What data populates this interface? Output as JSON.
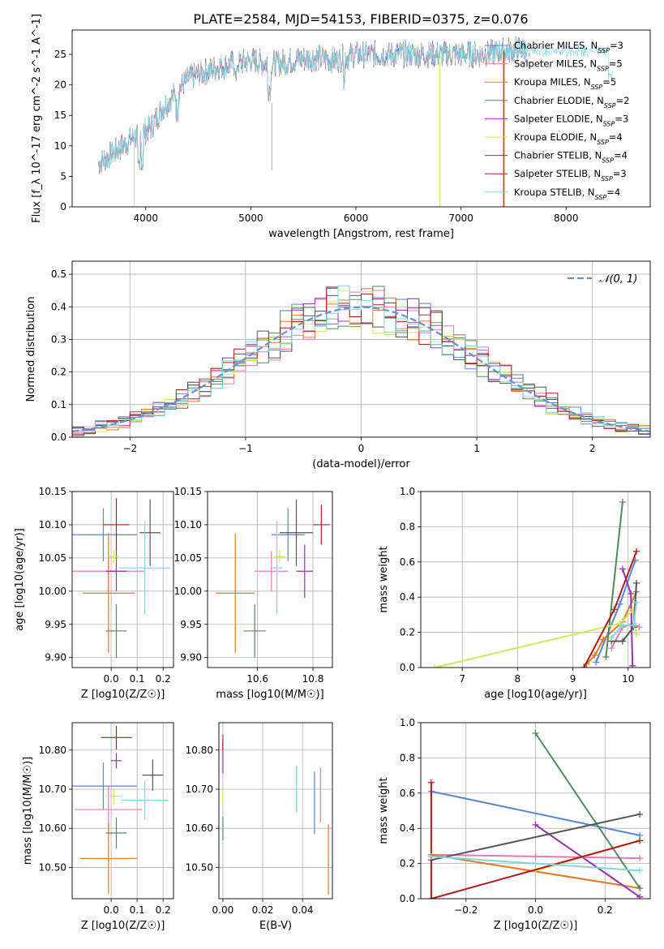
{
  "figure_title": "PLATE=2584, MJD=54153, FIBERID=0375, z=0.076",
  "colors": {
    "chabrier_miles": "#5b84d6",
    "salpeter_miles": "#e67ab5",
    "kroupa_miles": "#e07a20",
    "chabrier_elodie": "#4f8a5a",
    "salpeter_elodie": "#9b2fae",
    "kroupa_elodie": "#cfe85a",
    "chabrier_stelib": "#555555",
    "salpeter_stelib": "#b01c1c",
    "kroupa_stelib": "#7fd6e0",
    "normal_curve": "#6a8fd8",
    "grid": "#b0b0b0"
  },
  "chart_data": [
    {
      "id": "spectrum",
      "type": "line",
      "title": "PLATE=2584, MJD=54153, FIBERID=0375, z=0.076",
      "xlabel": "wavelength [Angstrom, rest frame]",
      "ylabel": "Flux [f_λ 10^-17 erg cm^-2 s^-1 A^-1]",
      "xlim": [
        3300,
        8800
      ],
      "ylim": [
        0,
        29
      ],
      "xticks": [
        4000,
        5000,
        6000,
        7000,
        8000
      ],
      "yticks": [
        0,
        5,
        10,
        15,
        20,
        25
      ],
      "grid": false,
      "legend_position": "top-right",
      "series": [
        {
          "name": "Chabrier MILES, N_SSP=3",
          "color_key": "chabrier_miles"
        },
        {
          "name": "Salpeter MILES, N_SSP=5",
          "color_key": "salpeter_miles"
        },
        {
          "name": "Kroupa MILES, N_SSP=5",
          "color_key": "kroupa_miles"
        },
        {
          "name": "Chabrier ELODIE, N_SSP=2",
          "color_key": "chabrier_elodie"
        },
        {
          "name": "Salpeter ELODIE, N_SSP=3",
          "color_key": "salpeter_elodie"
        },
        {
          "name": "Kroupa ELODIE, N_SSP=4",
          "color_key": "kroupa_elodie"
        },
        {
          "name": "Chabrier STELIB, N_SSP=4",
          "color_key": "chabrier_stelib"
        },
        {
          "name": "Salpeter STELIB, N_SSP=3",
          "color_key": "salpeter_stelib"
        },
        {
          "name": "Kroupa STELIB, N_SSP=4",
          "color_key": "kroupa_stelib"
        }
      ],
      "continuum": {
        "x": [
          3550,
          3700,
          3850,
          3950,
          4050,
          4150,
          4300,
          4400,
          4550,
          4700,
          4850,
          5000,
          5200,
          5400,
          5600,
          5800,
          6000,
          6200,
          6400,
          6600,
          6800,
          7000,
          7200,
          7400,
          7600
        ],
        "y": [
          7,
          9,
          11,
          12,
          13,
          16,
          19,
          21,
          22,
          23,
          23.5,
          24,
          23.5,
          24,
          24.5,
          24,
          25,
          25,
          25,
          25,
          25,
          25,
          25,
          25.5,
          26
        ]
      }
    },
    {
      "id": "residuals",
      "type": "histogram",
      "xlabel": "(data-model)/error",
      "ylabel": "Normed distribution",
      "xlim": [
        -2.5,
        2.5
      ],
      "ylim": [
        0,
        0.54
      ],
      "xticks": [
        -2,
        -1,
        0,
        1,
        2
      ],
      "yticks": [
        0,
        0.1,
        0.2,
        0.3,
        0.4,
        0.5
      ],
      "grid": true,
      "legend_position": "top-right",
      "legend_label": "𝒩(0, 1)",
      "bin_width": 0.1,
      "reference_curve": "standard normal N(0,1)"
    },
    {
      "id": "age_vs_Z",
      "type": "scatter",
      "xlabel": "Z [log10(Z/Z☉)]",
      "ylabel": "age  [log10(age/yr)]",
      "xlim": [
        -0.15,
        0.24
      ],
      "ylim": [
        9.885,
        10.15
      ],
      "xticks": [
        0.0,
        0.1,
        0.2
      ],
      "yticks": [
        9.9,
        9.95,
        10.0,
        10.05,
        10.1,
        10.15
      ],
      "grid": true,
      "points": [
        {
          "color_key": "chabrier_miles",
          "x": -0.03,
          "y": 10.085,
          "xerr": 0.13,
          "yerr": 0.04
        },
        {
          "color_key": "salpeter_miles",
          "x": -0.01,
          "y": 10.03,
          "xerr": 0.14,
          "yerr": 0.03
        },
        {
          "color_key": "kroupa_miles",
          "x": -0.01,
          "y": 9.997,
          "xerr": 0.1,
          "yerr": 0.09
        },
        {
          "color_key": "chabrier_elodie",
          "x": 0.02,
          "y": 9.94,
          "xerr": 0.04,
          "yerr": 0.04
        },
        {
          "color_key": "salpeter_elodie",
          "x": 0.02,
          "y": 10.03,
          "xerr": 0.04,
          "yerr": 0.03
        },
        {
          "color_key": "kroupa_elodie",
          "x": 0.01,
          "y": 10.052,
          "xerr": 0.02,
          "yerr": 0.01
        },
        {
          "color_key": "chabrier_stelib",
          "x": 0.15,
          "y": 10.088,
          "xerr": 0.04,
          "yerr": 0.05
        },
        {
          "color_key": "salpeter_stelib",
          "x": 0.02,
          "y": 10.1,
          "xerr": 0.05,
          "yerr": 0.04
        },
        {
          "color_key": "kroupa_stelib",
          "x": 0.13,
          "y": 10.035,
          "xerr": 0.1,
          "yerr": 0.07
        }
      ]
    },
    {
      "id": "age_vs_mass",
      "type": "scatter",
      "xlabel": "mass [log10(M/M☉)]",
      "ylabel": "",
      "xlim": [
        10.42,
        10.87
      ],
      "ylim": [
        9.885,
        10.15
      ],
      "xticks": [
        10.6,
        10.8
      ],
      "yticks": [
        9.9,
        9.95,
        10.0,
        10.05,
        10.1,
        10.15
      ],
      "grid": true,
      "points": [
        {
          "color_key": "chabrier_miles",
          "x": 10.71,
          "y": 10.085,
          "xerr": 0.06,
          "yerr": 0.04
        },
        {
          "color_key": "salpeter_miles",
          "x": 10.65,
          "y": 10.03,
          "xerr": 0.06,
          "yerr": 0.03
        },
        {
          "color_key": "kroupa_miles",
          "x": 10.52,
          "y": 9.997,
          "xerr": 0.07,
          "yerr": 0.09
        },
        {
          "color_key": "chabrier_elodie",
          "x": 10.59,
          "y": 9.94,
          "xerr": 0.04,
          "yerr": 0.04
        },
        {
          "color_key": "salpeter_elodie",
          "x": 10.77,
          "y": 10.03,
          "xerr": 0.03,
          "yerr": 0.04
        },
        {
          "color_key": "kroupa_elodie",
          "x": 10.68,
          "y": 10.052,
          "xerr": 0.02,
          "yerr": 0.01
        },
        {
          "color_key": "chabrier_stelib",
          "x": 10.74,
          "y": 10.088,
          "xerr": 0.06,
          "yerr": 0.05
        },
        {
          "color_key": "salpeter_stelib",
          "x": 10.83,
          "y": 10.1,
          "xerr": 0.03,
          "yerr": 0.03
        },
        {
          "color_key": "kroupa_stelib",
          "x": 10.67,
          "y": 10.035,
          "xerr": 0.02,
          "yerr": 0.07
        }
      ]
    },
    {
      "id": "weight_vs_age",
      "type": "line",
      "xlabel": "age  [log10(age/yr)]",
      "ylabel": "mass weight",
      "xlim": [
        6.25,
        10.4
      ],
      "ylim": [
        0,
        1.0
      ],
      "xticks": [
        7,
        8,
        9,
        10
      ],
      "yticks": [
        0.0,
        0.2,
        0.4,
        0.6,
        0.8,
        1.0
      ],
      "grid": true,
      "series": [
        {
          "color_key": "chabrier_miles",
          "x": [
            9.42,
            9.85,
            10.13
          ],
          "y": [
            0.03,
            0.36,
            0.61
          ]
        },
        {
          "color_key": "salpeter_miles",
          "x": [
            9.7,
            9.9,
            10.1,
            10.2
          ],
          "y": [
            0.11,
            0.23,
            0.25,
            0.23
          ]
        },
        {
          "color_key": "kroupa_miles",
          "x": [
            9.25,
            9.4,
            9.55,
            9.9,
            10.15
          ],
          "y": [
            0.02,
            0.07,
            0.16,
            0.26,
            0.43
          ]
        },
        {
          "color_key": "chabrier_elodie",
          "x": [
            9.6,
            9.9
          ],
          "y": [
            0.06,
            0.94
          ]
        },
        {
          "color_key": "salpeter_elodie",
          "x": [
            9.9,
            10.05,
            10.08
          ],
          "y": [
            0.56,
            0.42,
            0.01
          ]
        },
        {
          "color_key": "kroupa_elodie",
          "x": [
            6.5,
            9.85,
            10.1,
            10.15
          ],
          "y": [
            0.0,
            0.25,
            0.33,
            0.19
          ]
        },
        {
          "color_key": "chabrier_stelib",
          "x": [
            9.7,
            9.9,
            10.1,
            10.15
          ],
          "y": [
            0.15,
            0.15,
            0.23,
            0.48
          ]
        },
        {
          "color_key": "salpeter_stelib",
          "x": [
            9.2,
            9.75,
            10.15
          ],
          "y": [
            0.0,
            0.33,
            0.66
          ]
        },
        {
          "color_key": "kroupa_stelib",
          "x": [
            9.7,
            9.9,
            10.1,
            10.15
          ],
          "y": [
            0.17,
            0.24,
            0.24,
            0.37
          ]
        }
      ]
    },
    {
      "id": "mass_vs_Z",
      "type": "scatter",
      "xlabel": "Z [log10(Z/Z☉)]",
      "ylabel": "mass [log10(M/M☉)]",
      "xlim": [
        -0.15,
        0.24
      ],
      "ylim": [
        10.42,
        10.87
      ],
      "xticks": [
        0.0,
        0.1,
        0.2
      ],
      "yticks": [
        10.5,
        10.6,
        10.7,
        10.8
      ],
      "grid": true,
      "points": [
        {
          "color_key": "chabrier_miles",
          "x": -0.03,
          "y": 10.708,
          "xerr": 0.13,
          "yerr": 0.06
        },
        {
          "color_key": "salpeter_miles",
          "x": -0.01,
          "y": 10.648,
          "xerr": 0.13,
          "yerr": 0.06
        },
        {
          "color_key": "kroupa_miles",
          "x": -0.01,
          "y": 10.523,
          "xerr": 0.11,
          "yerr": 0.09
        },
        {
          "color_key": "chabrier_elodie",
          "x": 0.02,
          "y": 10.588,
          "xerr": 0.04,
          "yerr": 0.04
        },
        {
          "color_key": "salpeter_elodie",
          "x": 0.02,
          "y": 10.773,
          "xerr": 0.02,
          "yerr": 0.02
        },
        {
          "color_key": "kroupa_elodie",
          "x": 0.01,
          "y": 10.682,
          "xerr": 0.03,
          "yerr": 0.02
        },
        {
          "color_key": "chabrier_stelib",
          "x": 0.16,
          "y": 10.736,
          "xerr": 0.04,
          "yerr": 0.04
        },
        {
          "color_key": "salpeter_stelib",
          "x": 0.02,
          "y": 10.832,
          "xerr": 0.06,
          "yerr": 0.03
        },
        {
          "color_key": "kroupa_stelib",
          "x": 0.13,
          "y": 10.672,
          "xerr": 0.09,
          "yerr": 0.05
        }
      ]
    },
    {
      "id": "mass_vs_ebv",
      "type": "scatter",
      "xlabel": "E(B-V)",
      "ylabel": "",
      "xlim": [
        -0.002,
        0.055
      ],
      "ylim": [
        10.42,
        10.87
      ],
      "xticks": [
        0.0,
        0.02,
        0.04
      ],
      "yticks": [
        10.5,
        10.6,
        10.7,
        10.8
      ],
      "grid": true,
      "points": [
        {
          "color_key": "chabrier_miles",
          "x": 0.046,
          "y": 10.665,
          "yerr": 0.08
        },
        {
          "color_key": "salpeter_miles",
          "x": 0.049,
          "y": 10.685,
          "yerr": 0.07
        },
        {
          "color_key": "kroupa_miles",
          "x": 0.053,
          "y": 10.52,
          "yerr": 0.09
        },
        {
          "color_key": "chabrier_elodie",
          "x": 0.0,
          "y": 10.6,
          "yerr": 0.03
        },
        {
          "color_key": "salpeter_elodie",
          "x": 0.0,
          "y": 10.78,
          "yerr": 0.04
        },
        {
          "color_key": "kroupa_elodie",
          "x": 0.0,
          "y": 10.68,
          "yerr": 0.02
        },
        {
          "color_key": "salpeter_stelib",
          "x": 0.0,
          "y": 10.82,
          "yerr": 0.02
        },
        {
          "color_key": "kroupa_stelib",
          "x": 0.037,
          "y": 10.7,
          "yerr": 0.06
        }
      ]
    },
    {
      "id": "weight_vs_Z",
      "type": "line",
      "xlabel": "Z [log10(Z/Z☉)]",
      "ylabel": "mass weight",
      "xlim": [
        -0.33,
        0.33
      ],
      "ylim": [
        0,
        1.0
      ],
      "xticks": [
        -0.2,
        0.0,
        0.2
      ],
      "yticks": [
        0.0,
        0.2,
        0.4,
        0.6,
        0.8,
        1.0
      ],
      "grid": true,
      "series": [
        {
          "color_key": "chabrier_miles",
          "x": [
            -0.3,
            0.3
          ],
          "y": [
            0.61,
            0.36
          ]
        },
        {
          "color_key": "salpeter_miles",
          "x": [
            -0.3,
            0.0,
            0.3
          ],
          "y": [
            0.25,
            0.24,
            0.23
          ]
        },
        {
          "color_key": "kroupa_miles",
          "x": [
            -0.3,
            0.3
          ],
          "y": [
            0.25,
            0.06
          ]
        },
        {
          "color_key": "chabrier_elodie",
          "x": [
            0.0,
            0.3
          ],
          "y": [
            0.94,
            0.06
          ]
        },
        {
          "color_key": "salpeter_elodie",
          "x": [
            0.0,
            0.3
          ],
          "y": [
            0.42,
            0.01
          ]
        },
        {
          "color_key": "kroupa_elodie",
          "x": [
            0.0,
            0.3
          ],
          "y": [
            0.16,
            0.33
          ]
        },
        {
          "color_key": "chabrier_stelib",
          "x": [
            -0.3,
            0.3
          ],
          "y": [
            0.22,
            0.48
          ]
        },
        {
          "color_key": "salpeter_stelib",
          "x": [
            -0.3,
            -0.3,
            0.3
          ],
          "y": [
            0.66,
            0.0,
            0.33
          ]
        },
        {
          "color_key": "kroupa_stelib",
          "x": [
            -0.3,
            0.3
          ],
          "y": [
            0.24,
            0.16
          ]
        }
      ]
    }
  ]
}
